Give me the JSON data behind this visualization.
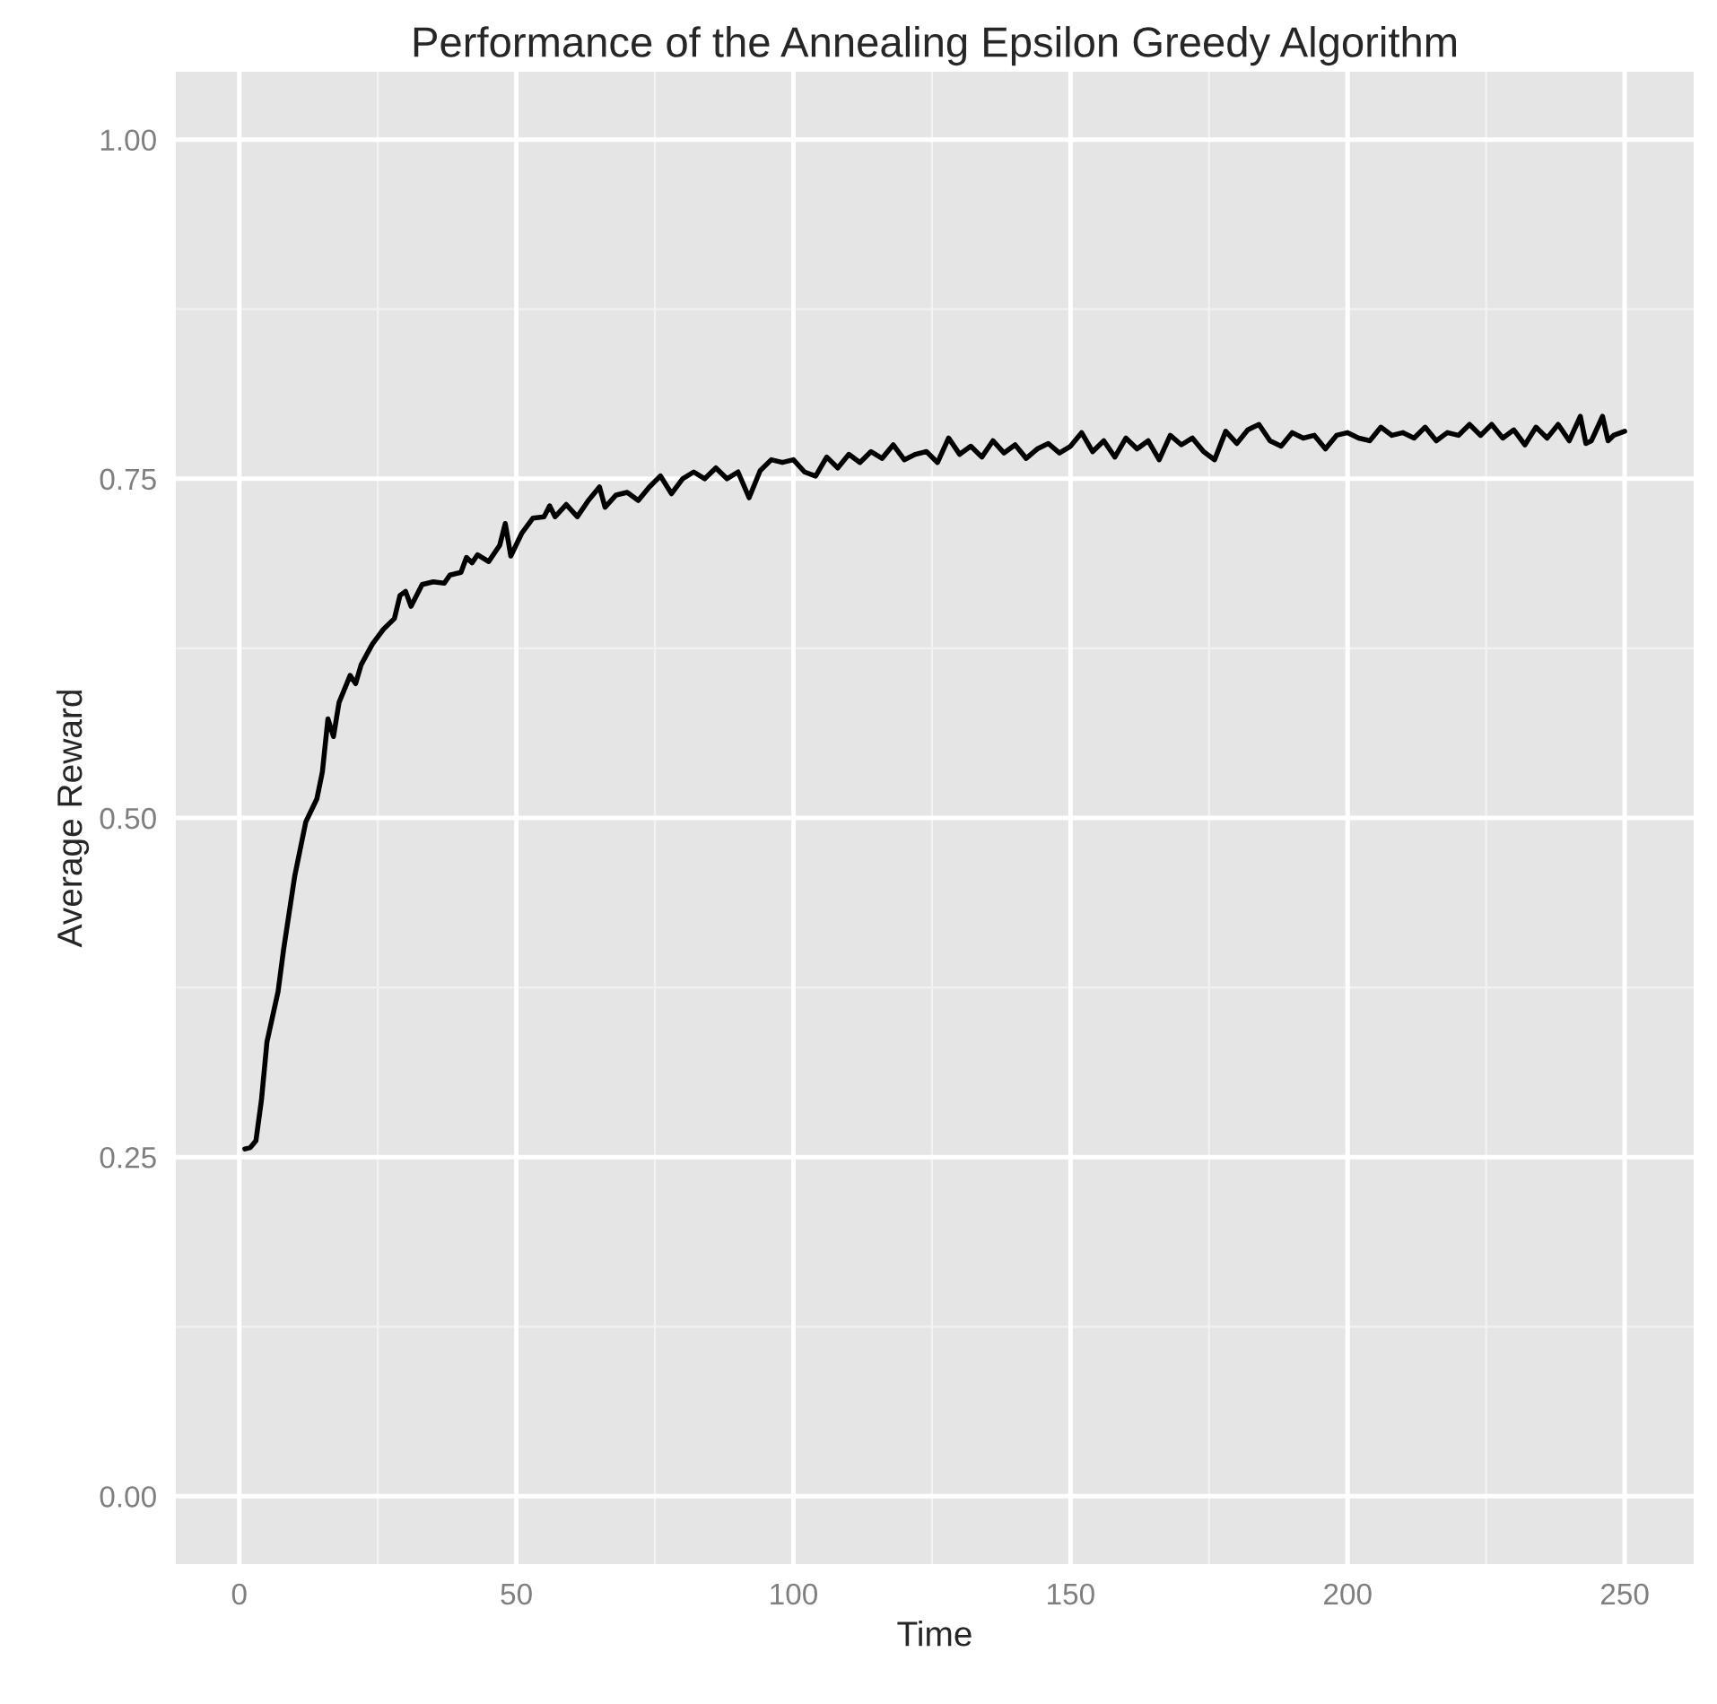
{
  "chart_data": {
    "type": "line",
    "title": "Performance of the Annealing Epsilon Greedy Algorithm",
    "xlabel": "Time",
    "ylabel": "Average Reward",
    "x": [
      1,
      2,
      3,
      4,
      5,
      7,
      8,
      10,
      12,
      14,
      15,
      16,
      17,
      18,
      20,
      21,
      22,
      24,
      26,
      28,
      29,
      30,
      31,
      33,
      35,
      37,
      38,
      40,
      41,
      42,
      43,
      45,
      47,
      48,
      49,
      51,
      53,
      55,
      56,
      57,
      59,
      61,
      63,
      65,
      66,
      68,
      70,
      72,
      74,
      76,
      78,
      80,
      82,
      84,
      86,
      88,
      90,
      92,
      94,
      96,
      98,
      100,
      102,
      104,
      106,
      108,
      110,
      112,
      114,
      116,
      118,
      120,
      122,
      124,
      126,
      128,
      130,
      132,
      134,
      136,
      138,
      140,
      142,
      144,
      146,
      148,
      150,
      152,
      154,
      156,
      158,
      160,
      162,
      164,
      166,
      168,
      170,
      172,
      174,
      176,
      178,
      180,
      182,
      184,
      186,
      188,
      190,
      192,
      194,
      196,
      198,
      200,
      202,
      204,
      206,
      208,
      210,
      212,
      214,
      216,
      218,
      220,
      222,
      224,
      226,
      228,
      230,
      232,
      234,
      236,
      238,
      240,
      242,
      243,
      244,
      246,
      247,
      248,
      250
    ],
    "series": [
      {
        "color": "#000000",
        "values": [
          0.256,
          0.257,
          0.262,
          0.292,
          0.335,
          0.372,
          0.403,
          0.457,
          0.497,
          0.514,
          0.534,
          0.573,
          0.56,
          0.585,
          0.605,
          0.599,
          0.613,
          0.628,
          0.639,
          0.647,
          0.664,
          0.667,
          0.656,
          0.672,
          0.674,
          0.673,
          0.679,
          0.681,
          0.692,
          0.688,
          0.694,
          0.689,
          0.701,
          0.717,
          0.693,
          0.71,
          0.721,
          0.722,
          0.73,
          0.722,
          0.731,
          0.722,
          0.734,
          0.744,
          0.729,
          0.738,
          0.74,
          0.734,
          0.744,
          0.752,
          0.739,
          0.75,
          0.755,
          0.75,
          0.758,
          0.75,
          0.755,
          0.736,
          0.756,
          0.764,
          0.762,
          0.764,
          0.755,
          0.752,
          0.766,
          0.758,
          0.768,
          0.762,
          0.77,
          0.765,
          0.775,
          0.764,
          0.768,
          0.77,
          0.762,
          0.78,
          0.768,
          0.774,
          0.766,
          0.778,
          0.769,
          0.775,
          0.765,
          0.772,
          0.776,
          0.769,
          0.774,
          0.784,
          0.77,
          0.778,
          0.766,
          0.78,
          0.772,
          0.778,
          0.764,
          0.782,
          0.775,
          0.78,
          0.77,
          0.764,
          0.785,
          0.776,
          0.786,
          0.79,
          0.778,
          0.774,
          0.784,
          0.78,
          0.782,
          0.772,
          0.782,
          0.784,
          0.78,
          0.778,
          0.788,
          0.782,
          0.784,
          0.78,
          0.788,
          0.778,
          0.784,
          0.782,
          0.79,
          0.782,
          0.79,
          0.78,
          0.786,
          0.775,
          0.788,
          0.78,
          0.79,
          0.778,
          0.796,
          0.776,
          0.778,
          0.796,
          0.778,
          0.782,
          0.785
        ]
      }
    ],
    "xlim": [
      -11.45,
      262.45
    ],
    "ylim": [
      -0.05,
      1.05
    ],
    "xticks": [
      0,
      50,
      100,
      150,
      200,
      250
    ],
    "yticks": [
      {
        "value": 0,
        "label": "0.00"
      },
      {
        "value": 0.25,
        "label": "0.25"
      },
      {
        "value": 0.5,
        "label": "0.50"
      },
      {
        "value": 0.75,
        "label": "0.75"
      },
      {
        "value": 1,
        "label": "1.00"
      }
    ],
    "grid": true,
    "line_style": "solid"
  }
}
